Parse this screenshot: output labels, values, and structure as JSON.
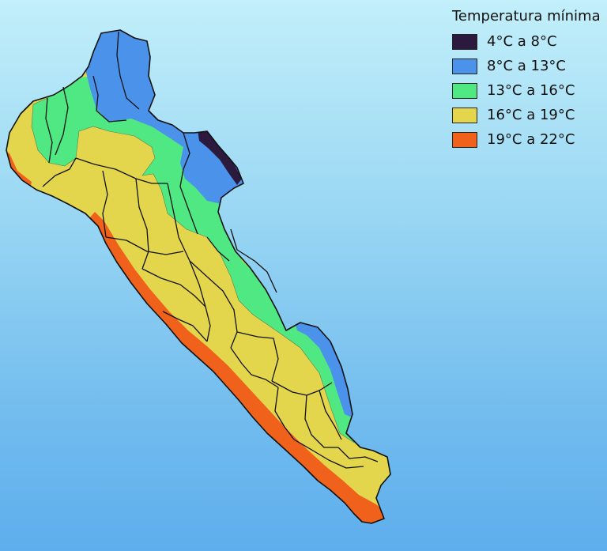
{
  "legend": {
    "title": "Temperatura mínima",
    "items": [
      {
        "label": "4°C a 8°C",
        "color": "#2b1a3d"
      },
      {
        "label": "8°C a 13°C",
        "color": "#4b93ea"
      },
      {
        "label": "13°C a 16°C",
        "color": "#4fe883"
      },
      {
        "label": "16°C a 19°C",
        "color": "#e3d64c"
      },
      {
        "label": "19°C a 22°C",
        "color": "#f0621c"
      }
    ]
  }
}
